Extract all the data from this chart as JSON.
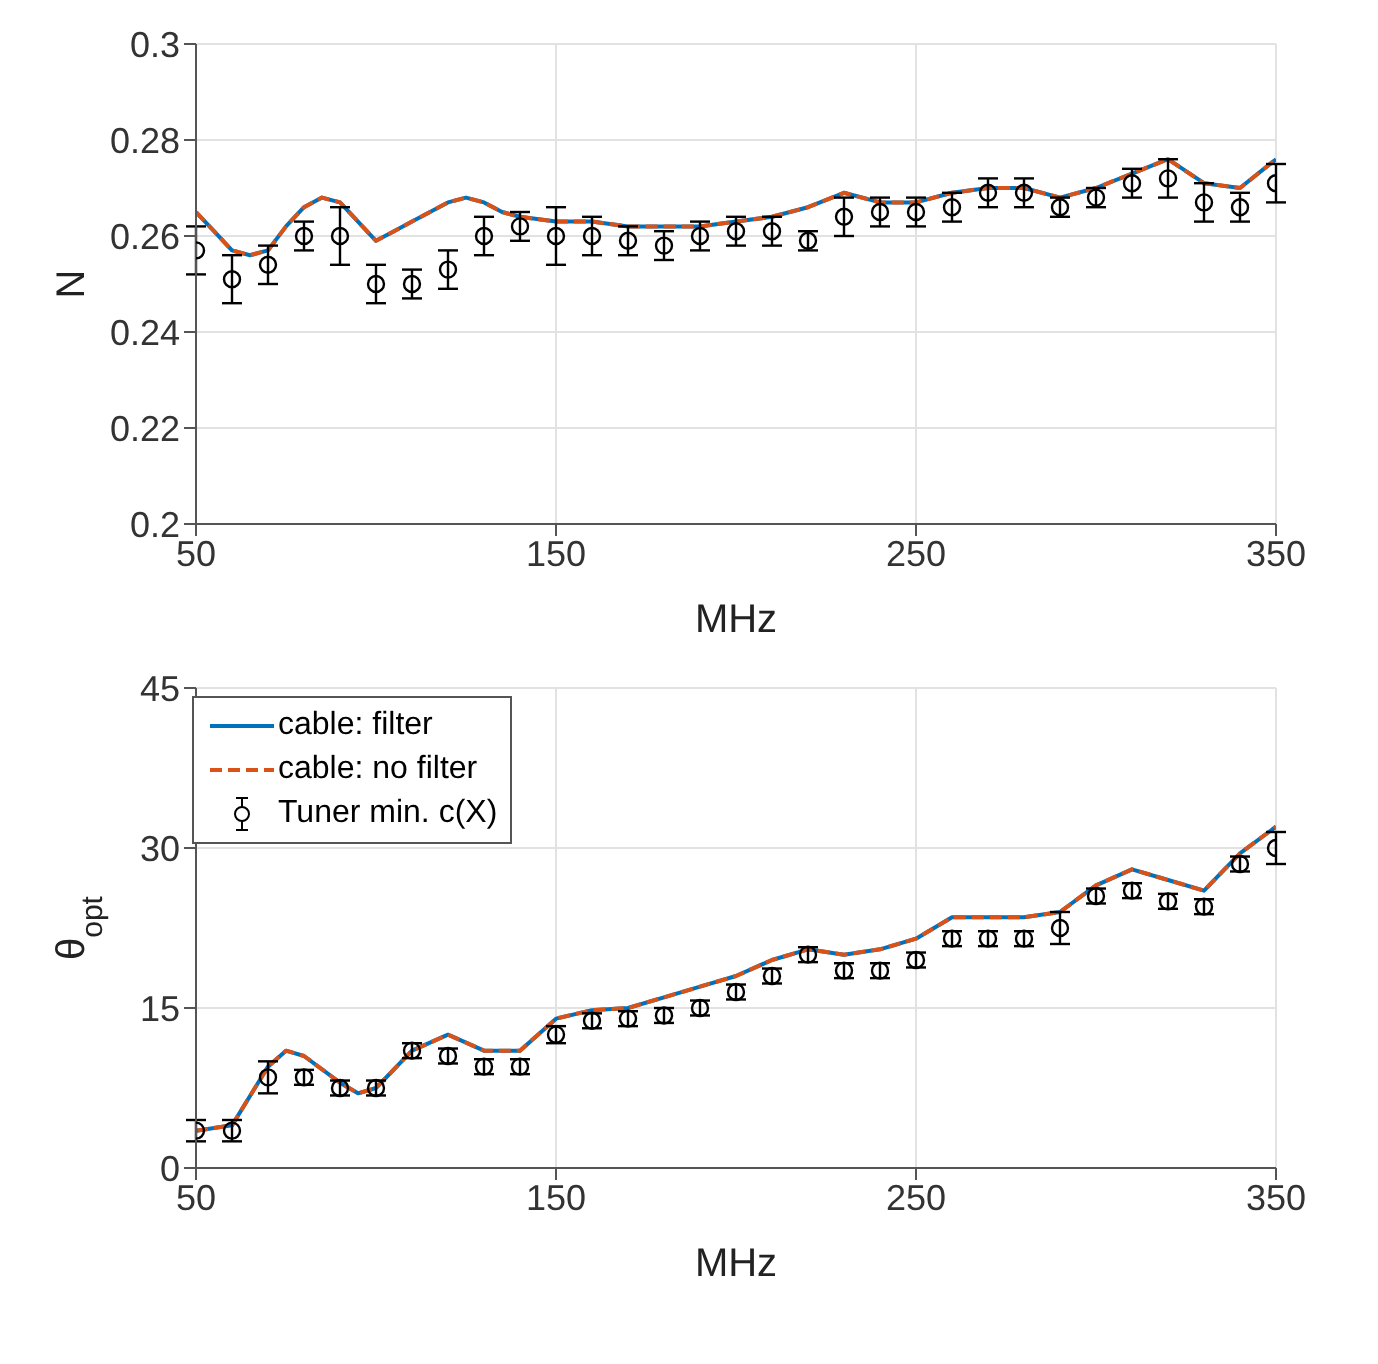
{
  "chart_data": [
    {
      "type": "line",
      "xlabel": "MHz",
      "ylabel": "N",
      "xlim": [
        50,
        350
      ],
      "xticks": [
        50,
        150,
        250,
        350
      ],
      "ylim": [
        0.2,
        0.3
      ],
      "yticks": [
        0.2,
        0.22,
        0.24,
        0.26,
        0.28,
        0.3
      ],
      "grid": true,
      "legend": false,
      "x": [
        50,
        60,
        70,
        80,
        90,
        100,
        110,
        120,
        130,
        140,
        150,
        160,
        170,
        180,
        190,
        200,
        210,
        220,
        230,
        240,
        250,
        260,
        270,
        280,
        290,
        300,
        310,
        320,
        330,
        340,
        350
      ],
      "series": [
        {
          "color": "#0072bd",
          "line_style": "solid",
          "marker": "none",
          "x": [
            50,
            55,
            60,
            65,
            70,
            75,
            80,
            85,
            90,
            95,
            100,
            105,
            110,
            115,
            120,
            125,
            130,
            135,
            140,
            150,
            160,
            170,
            180,
            190,
            200,
            210,
            220,
            230,
            240,
            250,
            260,
            270,
            280,
            290,
            300,
            310,
            320,
            330,
            340,
            350
          ],
          "values": [
            0.265,
            0.261,
            0.257,
            0.256,
            0.257,
            0.262,
            0.266,
            0.268,
            0.267,
            0.263,
            0.259,
            0.261,
            0.263,
            0.265,
            0.267,
            0.268,
            0.267,
            0.265,
            0.264,
            0.263,
            0.263,
            0.262,
            0.262,
            0.262,
            0.263,
            0.264,
            0.266,
            0.269,
            0.267,
            0.267,
            0.269,
            0.27,
            0.27,
            0.268,
            0.27,
            0.273,
            0.276,
            0.271,
            0.27,
            0.276
          ]
        },
        {
          "color": "#d95319",
          "line_style": "dashed",
          "marker": "none",
          "x": [
            50,
            55,
            60,
            65,
            70,
            75,
            80,
            85,
            90,
            95,
            100,
            105,
            110,
            115,
            120,
            125,
            130,
            135,
            140,
            150,
            160,
            170,
            180,
            190,
            200,
            210,
            220,
            230,
            240,
            250,
            260,
            270,
            280,
            290,
            300,
            310,
            320,
            330,
            340,
            350
          ],
          "values": [
            0.265,
            0.261,
            0.257,
            0.256,
            0.257,
            0.262,
            0.266,
            0.268,
            0.267,
            0.263,
            0.259,
            0.261,
            0.263,
            0.265,
            0.267,
            0.268,
            0.267,
            0.265,
            0.264,
            0.263,
            0.263,
            0.262,
            0.262,
            0.262,
            0.263,
            0.264,
            0.266,
            0.269,
            0.267,
            0.267,
            0.269,
            0.27,
            0.27,
            0.268,
            0.27,
            0.273,
            0.276,
            0.271,
            0.27,
            0.276
          ]
        },
        {
          "type": "scatter",
          "color": "#000000",
          "marker": "circle",
          "values": [
            0.257,
            0.251,
            0.254,
            0.26,
            0.26,
            0.25,
            0.25,
            0.253,
            0.26,
            0.262,
            0.26,
            0.26,
            0.259,
            0.258,
            0.26,
            0.261,
            0.261,
            0.259,
            0.264,
            0.265,
            0.265,
            0.266,
            0.269,
            0.269,
            0.266,
            0.268,
            0.271,
            0.272,
            0.267,
            0.266,
            0.271
          ],
          "errors": [
            0.005,
            0.005,
            0.004,
            0.003,
            0.006,
            0.004,
            0.003,
            0.004,
            0.004,
            0.003,
            0.006,
            0.004,
            0.003,
            0.003,
            0.003,
            0.003,
            0.003,
            0.002,
            0.004,
            0.003,
            0.003,
            0.003,
            0.003,
            0.003,
            0.002,
            0.002,
            0.003,
            0.004,
            0.004,
            0.003,
            0.004
          ]
        }
      ]
    },
    {
      "type": "line",
      "xlabel": "MHz",
      "ylabel": "θ$_{opt}$",
      "xlim": [
        50,
        350
      ],
      "xticks": [
        50,
        150,
        250,
        350
      ],
      "ylim": [
        0,
        45
      ],
      "yticks": [
        0,
        15,
        30,
        45
      ],
      "grid": true,
      "legend": "top left",
      "x": [
        50,
        60,
        70,
        80,
        90,
        100,
        110,
        120,
        130,
        140,
        150,
        160,
        170,
        180,
        190,
        200,
        210,
        220,
        230,
        240,
        250,
        260,
        270,
        280,
        290,
        300,
        310,
        320,
        330,
        340,
        350
      ],
      "series": [
        {
          "name": "cable: filter",
          "color": "#0072bd",
          "line_style": "solid",
          "marker": "none",
          "x": [
            50,
            60,
            70,
            75,
            80,
            90,
            95,
            100,
            110,
            120,
            130,
            140,
            150,
            160,
            170,
            180,
            190,
            200,
            210,
            220,
            230,
            240,
            250,
            260,
            270,
            280,
            290,
            300,
            310,
            320,
            330,
            340,
            350
          ],
          "values": [
            3.5,
            4,
            9.5,
            11,
            10.5,
            8,
            7,
            7.5,
            11,
            12.5,
            11,
            11,
            14,
            14.8,
            15,
            16,
            17,
            18,
            19.5,
            20.5,
            20,
            20.5,
            21.5,
            23.5,
            23.5,
            23.5,
            24,
            26.5,
            28,
            27,
            26,
            29.5,
            32
          ]
        },
        {
          "name": "cable: no filter",
          "color": "#d95319",
          "line_style": "dashed",
          "marker": "none",
          "x": [
            50,
            60,
            70,
            75,
            80,
            90,
            95,
            100,
            110,
            120,
            130,
            140,
            150,
            160,
            170,
            180,
            190,
            200,
            210,
            220,
            230,
            240,
            250,
            260,
            270,
            280,
            290,
            300,
            310,
            320,
            330,
            340,
            350
          ],
          "values": [
            3.5,
            4,
            9.5,
            11,
            10.5,
            8,
            7,
            7.5,
            11,
            12.5,
            11,
            11,
            14,
            14.8,
            15,
            16,
            17,
            18,
            19.5,
            20.5,
            20,
            20.5,
            21.5,
            23.5,
            23.5,
            23.5,
            24,
            26.5,
            28,
            27,
            26,
            29.5,
            32
          ]
        },
        {
          "type": "scatter",
          "name": "Tuner min. c(X)",
          "color": "#000000",
          "marker": "circle",
          "values": [
            3.5,
            3.5,
            8.5,
            8.5,
            7.5,
            7.5,
            11,
            10.5,
            9.5,
            9.5,
            12.5,
            13.8,
            14,
            14.3,
            15,
            16.5,
            18,
            20,
            18.5,
            18.5,
            19.5,
            21.5,
            21.5,
            21.5,
            22.5,
            25.5,
            26,
            25,
            24.5,
            28.5,
            30
          ],
          "errors": [
            1,
            1,
            1.5,
            0.7,
            0.7,
            0.7,
            0.7,
            0.7,
            0.7,
            0.7,
            0.8,
            0.7,
            0.7,
            0.7,
            0.7,
            0.7,
            0.7,
            0.7,
            0.7,
            0.7,
            0.7,
            0.7,
            0.7,
            0.7,
            1.5,
            0.7,
            0.7,
            0.7,
            0.7,
            0.7,
            1.5
          ]
        }
      ]
    }
  ]
}
